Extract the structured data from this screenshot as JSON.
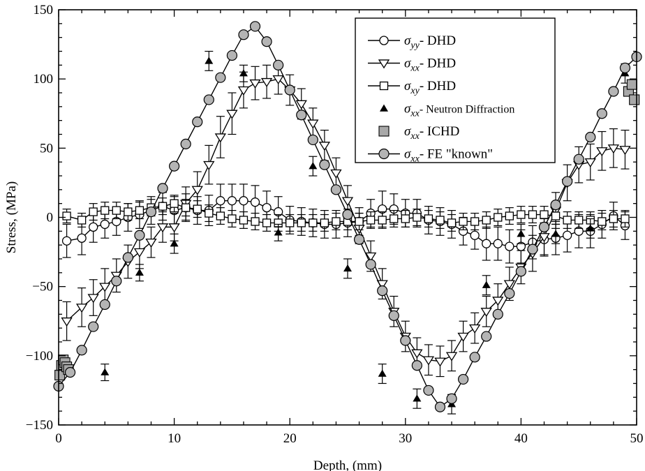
{
  "chart_data": {
    "type": "line",
    "xlabel": "Depth, (mm)",
    "ylabel": "Stress, (MPa)",
    "xlim": [
      0,
      50
    ],
    "ylim": [
      -150,
      150
    ],
    "xticks": [
      0,
      10,
      20,
      30,
      40,
      50
    ],
    "yticks": [
      -150,
      -100,
      -50,
      0,
      50,
      100,
      150
    ],
    "x_tick_labels": [
      "0",
      "10",
      "20",
      "30",
      "40",
      "50"
    ],
    "y_tick_labels": [
      "−150",
      "−100",
      "−50",
      "0",
      "50",
      "100",
      "150"
    ],
    "grid": false,
    "legend_position": "top-right",
    "series": [
      {
        "name": "σyy- DHD",
        "legend_symbol": "σ",
        "legend_sub": "yy",
        "legend_rest": "- DHD",
        "marker": "circle-open",
        "line": true,
        "x": [
          0.7,
          2,
          3,
          4,
          5,
          6,
          7,
          8,
          9,
          10,
          11,
          12,
          13,
          14,
          15,
          16,
          17,
          18,
          19,
          20,
          21,
          22,
          23,
          24,
          25,
          26,
          27,
          28,
          29,
          30,
          31,
          32,
          33,
          34,
          35,
          36,
          37,
          38,
          39,
          40,
          41,
          42,
          43,
          44,
          45,
          46,
          47,
          48,
          49
        ],
        "y": [
          -17,
          -15,
          -7,
          -5,
          -3,
          0,
          2,
          5,
          8,
          5,
          7,
          5,
          5,
          12,
          12,
          12,
          11,
          7,
          4,
          -2,
          -3,
          -4,
          -5,
          -5,
          -4,
          -3,
          3,
          6,
          6,
          3,
          3,
          -2,
          -3,
          -5,
          -10,
          -13,
          -19,
          -19,
          -21,
          -21,
          -18,
          -16,
          -15,
          -13,
          -10,
          -10,
          -5,
          1,
          -6
        ],
        "error": [
          12,
          12,
          11,
          10,
          10,
          10,
          10,
          10,
          10,
          10,
          10,
          10,
          11,
          12,
          12,
          12,
          12,
          12,
          11,
          10,
          10,
          10,
          10,
          10,
          10,
          10,
          10,
          13,
          11,
          10,
          10,
          10,
          10,
          10,
          10,
          10,
          12,
          12,
          12,
          12,
          12,
          12,
          12,
          12,
          12,
          12,
          10,
          10,
          10
        ]
      },
      {
        "name": "σxx- DHD",
        "legend_symbol": "σ",
        "legend_sub": "xx",
        "legend_rest": "- DHD",
        "marker": "triangle-down-open",
        "line": true,
        "x": [
          0.7,
          2,
          3,
          4,
          5,
          6,
          7,
          8,
          9,
          10,
          11,
          12,
          13,
          14,
          15,
          16,
          17,
          18,
          19,
          20,
          21,
          22,
          23,
          24,
          25,
          26,
          27,
          28,
          29,
          30,
          31,
          32,
          33,
          34,
          35,
          36,
          37,
          38,
          39,
          40,
          41,
          42,
          43,
          44,
          45,
          46,
          47,
          48,
          49
        ],
        "y": [
          -75,
          -65,
          -58,
          -50,
          -42,
          -32,
          -25,
          -18,
          -7,
          -7,
          10,
          20,
          38,
          58,
          75,
          92,
          97,
          98,
          100,
          92,
          82,
          68,
          52,
          32,
          12,
          -8,
          -28,
          -48,
          -68,
          -86,
          -98,
          -103,
          -104,
          -100,
          -86,
          -80,
          -68,
          -60,
          -48,
          -36,
          -26,
          -14,
          5,
          25,
          38,
          40,
          48,
          50,
          49
        ],
        "error": [
          14,
          14,
          13,
          13,
          12,
          12,
          12,
          11,
          11,
          10,
          12,
          13,
          14,
          15,
          15,
          13,
          12,
          12,
          11,
          11,
          11,
          11,
          11,
          11,
          11,
          11,
          11,
          11,
          11,
          11,
          11,
          11,
          11,
          11,
          11,
          11,
          11,
          12,
          12,
          12,
          13,
          13,
          13,
          13,
          13,
          13,
          14,
          14,
          14
        ]
      },
      {
        "name": "σxy- DHD",
        "legend_symbol": "σ",
        "legend_sub": "xy",
        "legend_rest": "- DHD",
        "marker": "square-open",
        "line": true,
        "x": [
          0.7,
          2,
          3,
          4,
          5,
          6,
          7,
          8,
          9,
          10,
          11,
          12,
          13,
          14,
          15,
          16,
          17,
          18,
          19,
          20,
          21,
          22,
          23,
          24,
          25,
          26,
          27,
          28,
          29,
          30,
          31,
          32,
          33,
          34,
          35,
          36,
          37,
          38,
          39,
          40,
          41,
          42,
          43,
          44,
          45,
          46,
          47,
          48,
          49
        ],
        "y": [
          1,
          -2,
          4,
          5,
          5,
          4,
          5,
          7,
          8,
          10,
          7,
          6,
          3,
          1,
          -1,
          -2,
          -3,
          -4,
          -4,
          -4,
          -4,
          -4,
          -4,
          -3,
          -3,
          -3,
          -2,
          -2,
          -1,
          -1,
          0,
          -1,
          -2,
          -4,
          -3,
          -3,
          -2,
          0,
          1,
          2,
          2,
          2,
          1,
          -2,
          -2,
          -2,
          -3,
          -1,
          -1
        ],
        "error": [
          5,
          5,
          6,
          6,
          6,
          6,
          6,
          6,
          6,
          6,
          6,
          6,
          6,
          6,
          6,
          6,
          6,
          6,
          6,
          6,
          6,
          6,
          6,
          6,
          6,
          6,
          6,
          6,
          6,
          6,
          6,
          6,
          6,
          6,
          6,
          6,
          6,
          6,
          6,
          6,
          6,
          6,
          6,
          6,
          6,
          6,
          6,
          6,
          6
        ]
      },
      {
        "name": "σxx- Neutron Diffraction",
        "legend_symbol": "σ",
        "legend_sub": "xx",
        "legend_rest": "- Neutron Diffraction",
        "legend_rest_small": true,
        "marker": "triangle-up-filled",
        "line": false,
        "x": [
          4,
          7,
          10,
          13,
          16,
          19,
          22,
          25,
          28,
          31,
          34,
          37,
          40,
          43,
          46,
          49
        ],
        "y": [
          -112,
          -40,
          -19,
          113,
          104,
          -11,
          37,
          -37,
          -113,
          -131,
          -135,
          -49,
          -12,
          -12,
          -8,
          104
        ],
        "error": [
          6,
          6,
          7,
          7,
          6,
          6,
          7,
          7,
          7,
          7,
          7,
          7,
          7,
          7,
          7,
          7
        ]
      },
      {
        "name": "σxx- ICHD",
        "legend_symbol": "σ",
        "legend_sub": "xx",
        "legend_rest": "- ICHD",
        "marker": "square-filled-grey",
        "line": false,
        "x": [
          0.1,
          0.25,
          0.4,
          0.55,
          0.7,
          0.85,
          49.3,
          49.6,
          49.8
        ],
        "y": [
          -114,
          -107,
          -103,
          -105,
          -108,
          -110,
          91,
          96,
          85
        ],
        "error": [
          0,
          0,
          0,
          0,
          0,
          0,
          0,
          0,
          0
        ]
      },
      {
        "name": "σxx- FE \"known\"",
        "legend_symbol": "σ",
        "legend_sub": "xx",
        "legend_rest": "- FE \"known\"",
        "marker": "circle-filled-grey",
        "line": true,
        "x": [
          0,
          1,
          2,
          3,
          4,
          5,
          6,
          7,
          8,
          9,
          10,
          11,
          12,
          13,
          14,
          15,
          16,
          17,
          18,
          19,
          20,
          21,
          22,
          23,
          24,
          25,
          26,
          27,
          28,
          29,
          30,
          31,
          32,
          33,
          34,
          35,
          36,
          37,
          38,
          39,
          40,
          41,
          42,
          43,
          44,
          45,
          46,
          47,
          48,
          49,
          50
        ],
        "y": [
          -122,
          -112,
          -96,
          -79,
          -63,
          -46,
          -29,
          -13,
          4,
          21,
          37,
          53,
          69,
          85,
          101,
          117,
          132,
          138,
          127,
          110,
          92,
          74,
          56,
          38,
          20,
          2,
          -16,
          -34,
          -53,
          -71,
          -89,
          -107,
          -125,
          -137,
          -131,
          -117,
          -101,
          -86,
          -70,
          -55,
          -39,
          -23,
          -7,
          9,
          26,
          42,
          58,
          75,
          91,
          108,
          116
        ],
        "error": []
      }
    ]
  }
}
